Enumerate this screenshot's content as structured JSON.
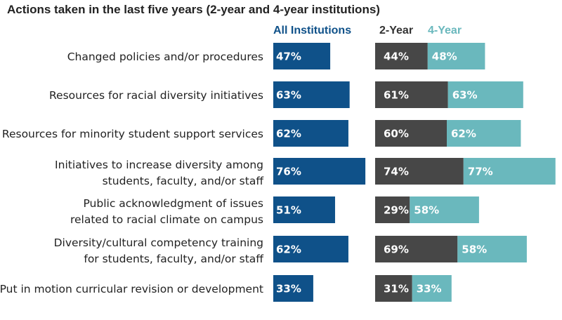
{
  "chart_data": {
    "type": "bar",
    "title": "Actions taken in the last five years (2-year and 4-year institutions)",
    "legend": {
      "all": "All Institutions",
      "two_year": "2-Year",
      "four_year": "4-Year"
    },
    "colors": {
      "all": "#0f5189",
      "two_year": "#474747",
      "four_year": "#6ab8bd",
      "text": "#222222"
    },
    "categories": [
      [
        "Changed policies and/or procedures"
      ],
      [
        "Resources for racial diversity initiatives"
      ],
      [
        "Resources for minority student support services"
      ],
      [
        "Initiatives to increase diversity among",
        "students, faculty, and/or staff"
      ],
      [
        "Public acknowledgment of issues",
        "related to racial climate on campus"
      ],
      [
        "Diversity/cultural competency training",
        "for students, faculty, and/or staff"
      ],
      [
        "Put in motion curricular revision or development"
      ]
    ],
    "series": [
      {
        "name": "All Institutions",
        "values": [
          47,
          63,
          62,
          76,
          51,
          62,
          33
        ],
        "labels": [
          "47%",
          "63%",
          "62%",
          "76%",
          "51%",
          "62%",
          "33%"
        ]
      },
      {
        "name": "2-Year",
        "values": [
          44,
          61,
          60,
          74,
          29,
          69,
          31
        ],
        "labels": [
          "44%",
          "61%",
          "60%",
          "74%",
          "29%",
          "69%",
          "31%"
        ]
      },
      {
        "name": "4-Year",
        "values": [
          48,
          63,
          62,
          77,
          58,
          58,
          33
        ],
        "labels": [
          "48%",
          "63%",
          "62%",
          "77%",
          "58%",
          "58%",
          "33%"
        ]
      }
    ],
    "xlim": [
      0,
      100
    ],
    "unit": "%"
  }
}
